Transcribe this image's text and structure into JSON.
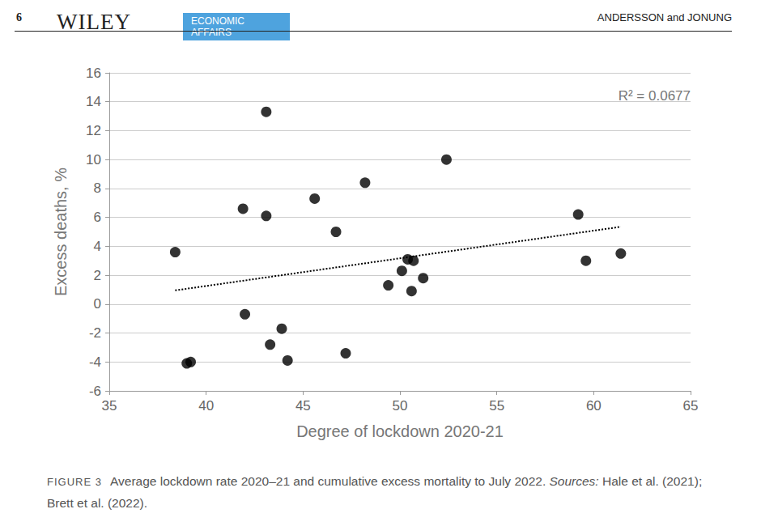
{
  "header": {
    "page_number": "6",
    "publisher": "WILEY",
    "journal": [
      "ECONOMIC",
      "AFFAIRS"
    ],
    "authors": "ANDERSSON and JONUNG"
  },
  "caption": {
    "label": "FIGURE 3",
    "text": "Average lockdown rate 2020–21 and cumulative excess mortality to July 2022.",
    "sources_label": "Sources:",
    "sources": "Hale et al. (2021); Brett et al. (2022)."
  },
  "chart_data": {
    "type": "scatter",
    "x_label": "Degree of lockdown 2020-21",
    "y_label": "Excess deaths, %",
    "x": [
      38.4,
      39.0,
      39.2,
      41.9,
      42.0,
      43.1,
      43.1,
      43.3,
      43.9,
      44.2,
      45.6,
      46.7,
      47.2,
      48.2,
      49.4,
      50.1,
      50.4,
      50.7,
      50.6,
      51.2,
      52.4,
      59.2,
      59.6,
      61.4
    ],
    "values": [
      3.6,
      -4.1,
      -4.0,
      6.6,
      -0.7,
      13.3,
      6.1,
      -2.8,
      -1.7,
      -3.9,
      7.3,
      5.0,
      -3.4,
      8.4,
      1.3,
      2.3,
      3.1,
      3.0,
      0.9,
      1.8,
      10.0,
      6.2,
      3.0,
      3.5
    ],
    "color": "#000000",
    "marker": "circle",
    "trendline": {
      "x": [
        38.4,
        61.4
      ],
      "values": [
        0.95,
        5.35
      ],
      "line_style": "dotted",
      "color": "#000000"
    },
    "annotations": [
      "R² = 0.0677"
    ],
    "xlim": [
      35,
      65
    ],
    "xticks": [
      35,
      40,
      45,
      50,
      55,
      60,
      65
    ],
    "ylim": [
      -6,
      16
    ],
    "yticks": [
      -6,
      -4,
      -2,
      0,
      2,
      4,
      6,
      8,
      10,
      12,
      14,
      16
    ],
    "grid": true
  }
}
